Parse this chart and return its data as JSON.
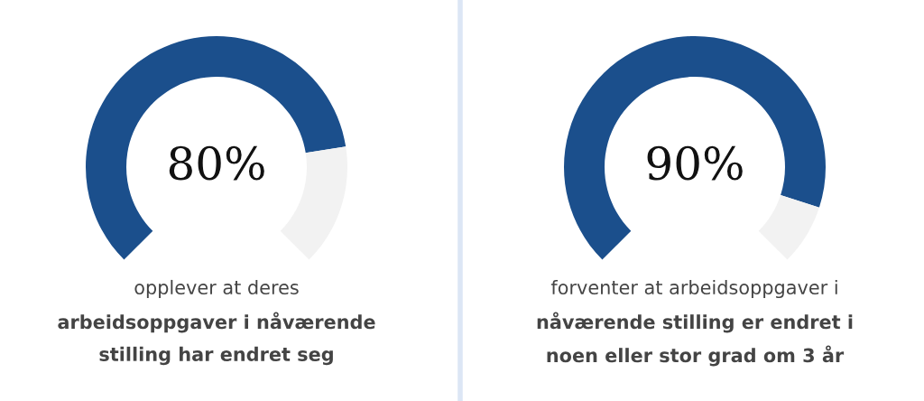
{
  "chart_data": [
    {
      "type": "donut",
      "categories": [
        null,
        null
      ],
      "values": [
        80,
        20
      ],
      "colors": [
        "#1b4f8c",
        "#f2f2f2"
      ],
      "value_labels": [
        "80%",
        null
      ],
      "annotations": [
        "opplever at deres",
        "arbeidsoppgaver i nåværende",
        "stilling har endret seg"
      ]
    },
    {
      "type": "donut",
      "categories": [
        null,
        null
      ],
      "values": [
        90,
        10
      ],
      "colors": [
        "#1b4f8c",
        "#f2f2f2"
      ],
      "value_labels": [
        "90%",
        null
      ],
      "annotations": [
        "forventer at arbeidsoppgaver i",
        "nåværende stilling er endret i",
        "noen eller stor grad om 3 år"
      ]
    }
  ]
}
